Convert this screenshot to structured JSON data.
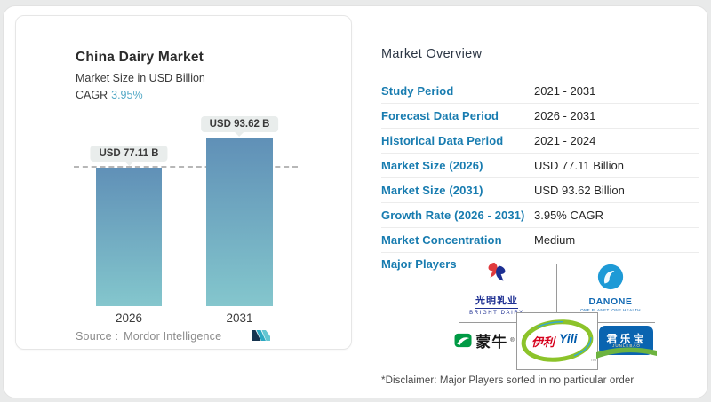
{
  "left_panel": {
    "title": "China Dairy Market",
    "subtitle": "Market Size in USD Billion",
    "cagr_label": "CAGR",
    "cagr_value": "3.95%",
    "source_label": "Source :",
    "source_value": "Mordor Intelligence"
  },
  "chart_data": {
    "type": "bar",
    "title": "China Dairy Market",
    "ylabel": "Market Size in USD Billion",
    "categories": [
      "2026",
      "2031"
    ],
    "values": [
      77.11,
      93.62
    ],
    "bar_labels": [
      "USD 77.11 B",
      "USD 93.62 B"
    ],
    "unit": "USD Billion",
    "reference_line": 77.11,
    "ylim": [
      0,
      100
    ],
    "grid": false,
    "colors": {
      "bar_gradient_top": "#6090b7",
      "bar_gradient_bottom": "#85c6cd",
      "accent": "#54a9c6"
    }
  },
  "right_panel": {
    "heading": "Market Overview",
    "rows": [
      {
        "label": "Study Period",
        "value": "2021 - 2031"
      },
      {
        "label": "Forecast Data Period",
        "value": "2026 - 2031"
      },
      {
        "label": "Historical Data Period",
        "value": "2021 - 2024"
      },
      {
        "label": "Market Size (2026)",
        "value": "USD 77.11 Billion"
      },
      {
        "label": "Market Size (2031)",
        "value": "USD 93.62 Billion"
      },
      {
        "label": "Growth Rate (2026 - 2031)",
        "value": "3.95% CAGR"
      },
      {
        "label": "Market Concentration",
        "value": "Medium"
      }
    ],
    "major_players_label": "Major Players",
    "players": [
      {
        "name": "Bright Dairy",
        "cjk": "光明乳业",
        "latin": "BRIGHT DAIRY"
      },
      {
        "name": "Danone",
        "latin": "DANONE",
        "tagline": "ONE PLANET. ONE HEALTH"
      },
      {
        "name": "Mengniu",
        "cjk": "蒙牛",
        "reg": "®"
      },
      {
        "name": "Yili",
        "cjk": "伊利",
        "latin": "Yili",
        "tm": "TM"
      },
      {
        "name": "Junlebao",
        "cjk": "君乐宝",
        "latin": "JUNLEBAO"
      }
    ],
    "disclaimer": "*Disclaimer: Major Players sorted in no particular order"
  }
}
